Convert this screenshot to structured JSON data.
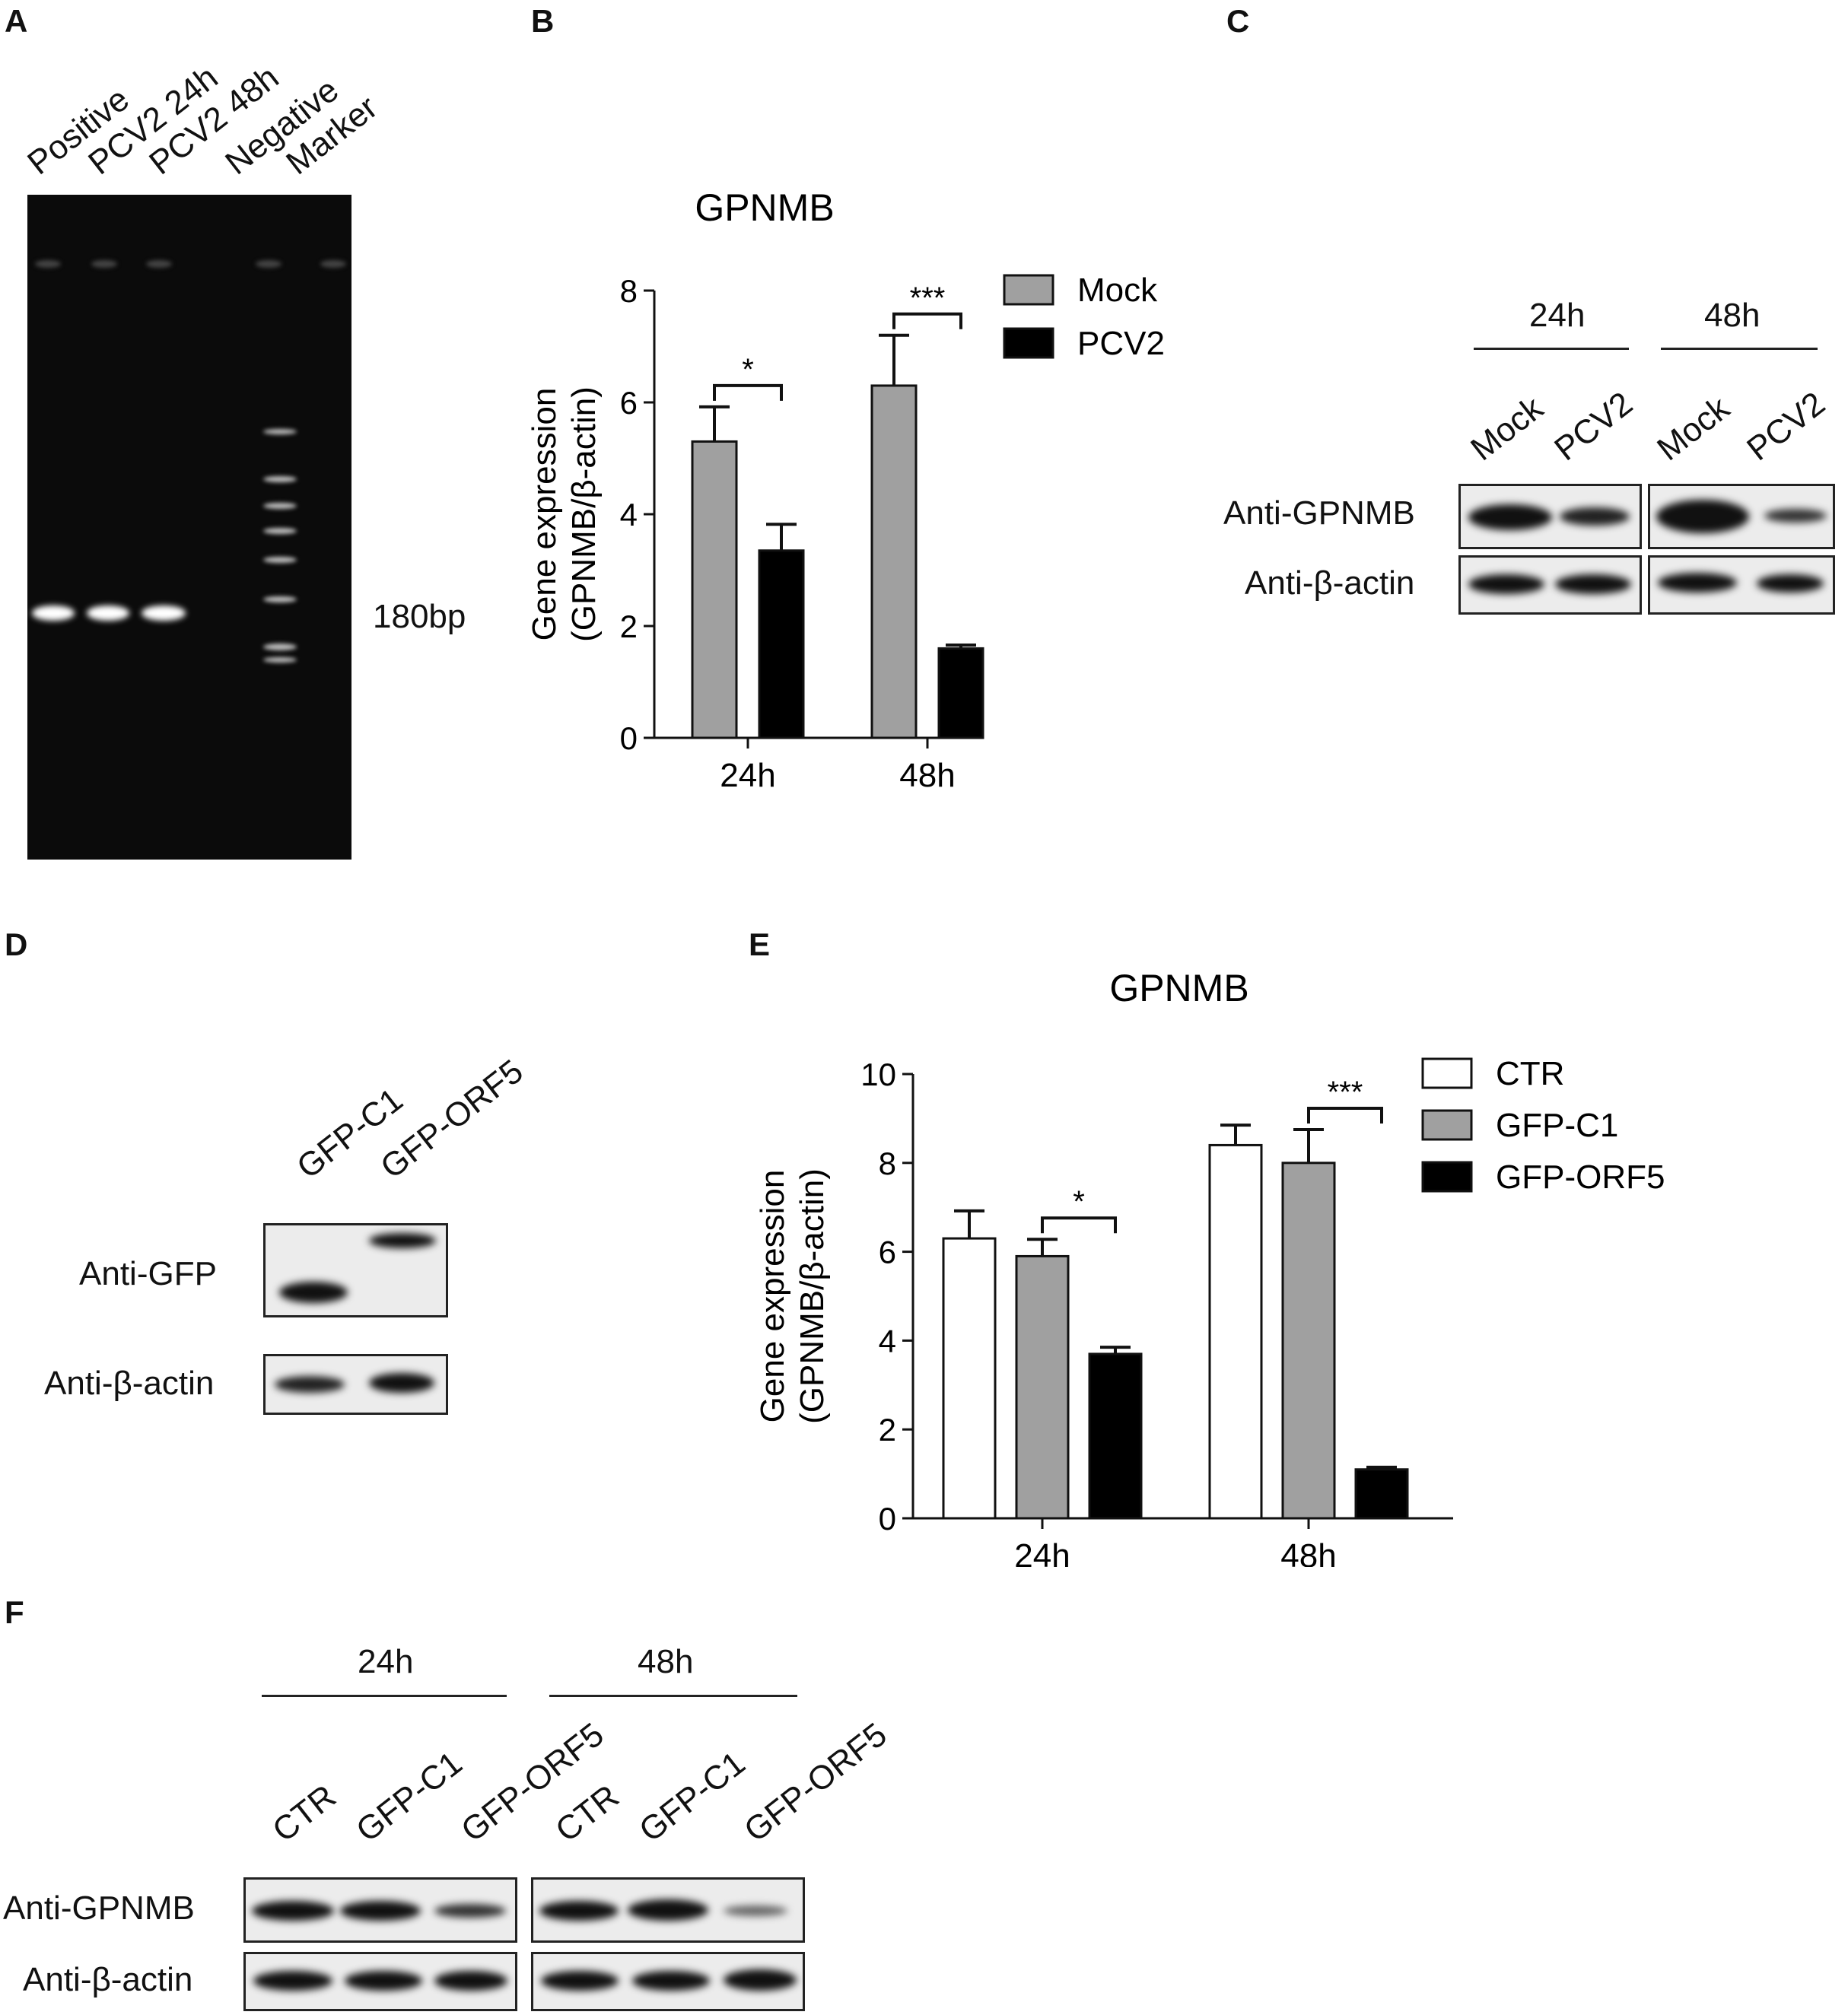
{
  "panels": {
    "a": "A",
    "b": "B",
    "c": "C",
    "d": "D",
    "e": "E",
    "f": "F"
  },
  "panelA": {
    "lanes": [
      "Positive",
      "PCV2 24h",
      "PCV2 48h",
      "Negative",
      "Marker"
    ],
    "band_label": "180bp"
  },
  "panelC": {
    "time1": "24h",
    "time2": "48h",
    "lanes": [
      "Mock",
      "PCV2",
      "Mock",
      "PCV2"
    ],
    "rows": [
      "Anti-GPNMB",
      "Anti-β-actin"
    ]
  },
  "panelD": {
    "lanes": [
      "GFP-C1",
      "GFP-ORF5"
    ],
    "rows": [
      "Anti-GFP",
      "Anti-β-actin"
    ]
  },
  "panelF": {
    "time1": "24h",
    "time2": "48h",
    "lanes": [
      "CTR",
      "GFP-C1",
      "GFP-ORF5",
      "CTR",
      "GFP-C1",
      "GFP-ORF5"
    ],
    "rows": [
      "Anti-GPNMB",
      "Anti-β-actin"
    ]
  },
  "colors": {
    "gray": "#a0a0a0",
    "black": "#000000",
    "white": "#ffffff"
  },
  "chart_data": [
    {
      "panel": "B",
      "type": "bar",
      "title": "GPNMB",
      "ylabel": "Gene expression\n(GPNMB/β-actin)",
      "ylabel_lines": [
        "Gene expression",
        "(GPNMB/β-actin)"
      ],
      "categories": [
        "24h",
        "48h"
      ],
      "ylim": [
        0,
        8
      ],
      "yticks": [
        0,
        2,
        4,
        6,
        8
      ],
      "legend": "top-right",
      "series": [
        {
          "name": "Mock",
          "color": "#a0a0a0",
          "values": [
            5.3,
            6.3
          ],
          "errors": [
            0.62,
            0.9
          ]
        },
        {
          "name": "PCV2",
          "color": "#000000",
          "values": [
            3.35,
            1.6
          ],
          "errors": [
            0.47,
            0.06
          ]
        }
      ],
      "significance": [
        {
          "category": 0,
          "label": "*"
        },
        {
          "category": 1,
          "label": "***"
        }
      ]
    },
    {
      "panel": "E",
      "type": "bar",
      "title": "GPNMB",
      "ylabel": "Gene expression\n(GPNMB/β-actin)",
      "ylabel_lines": [
        "Gene expression",
        "(GPNMB/β-actin)"
      ],
      "categories": [
        "24h",
        "48h"
      ],
      "ylim": [
        0,
        10
      ],
      "yticks": [
        0,
        2,
        4,
        6,
        8,
        10
      ],
      "legend": "top-right",
      "series": [
        {
          "name": "CTR",
          "color": "#ffffff",
          "values": [
            6.3,
            8.4
          ],
          "errors": [
            0.62,
            0.45
          ]
        },
        {
          "name": "GFP-C1",
          "color": "#a0a0a0",
          "values": [
            5.9,
            8.0
          ],
          "errors": [
            0.38,
            0.75
          ]
        },
        {
          "name": "GFP-ORF5",
          "color": "#000000",
          "values": [
            3.7,
            1.1
          ],
          "errors": [
            0.15,
            0.05
          ]
        }
      ],
      "significance": [
        {
          "category": 0,
          "label": "*"
        },
        {
          "category": 1,
          "label": "***"
        }
      ]
    }
  ]
}
